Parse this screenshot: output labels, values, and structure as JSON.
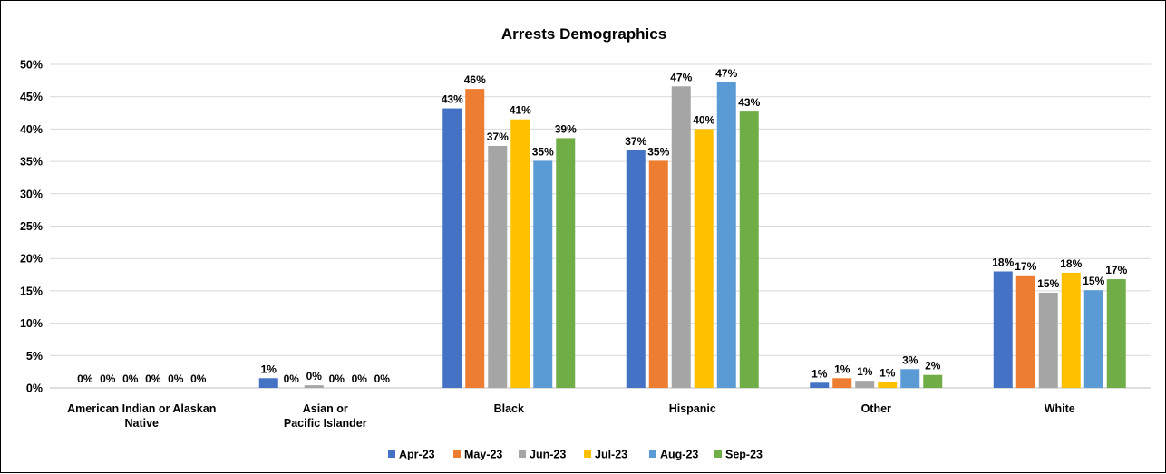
{
  "chart_data": {
    "type": "bar",
    "title": "Arrests Demographics",
    "xlabel": "",
    "ylabel": "",
    "ylim": [
      0,
      50
    ],
    "y_ticks": [
      0,
      5,
      10,
      15,
      20,
      25,
      30,
      35,
      40,
      45,
      50
    ],
    "y_tick_labels": [
      "0%",
      "5%",
      "10%",
      "15%",
      "20%",
      "25%",
      "30%",
      "35%",
      "40%",
      "45%",
      "50%"
    ],
    "grid": true,
    "legend_position": "bottom",
    "categories": [
      [
        "American Indian or Alaskan",
        "Native"
      ],
      [
        "Asian or",
        "Pacific Islander"
      ],
      [
        "Black"
      ],
      [
        "Hispanic"
      ],
      [
        "Other"
      ],
      [
        "White"
      ]
    ],
    "series": [
      {
        "name": "Apr-23",
        "color": "#4472C4",
        "values": [
          0,
          1.5,
          43.2,
          36.7,
          0.8,
          18.0
        ],
        "labels": [
          "0%",
          "1%",
          "43%",
          "37%",
          "1%",
          "18%"
        ]
      },
      {
        "name": "May-23",
        "color": "#ED7D31",
        "values": [
          0,
          0,
          46.2,
          35.1,
          1.5,
          17.4
        ],
        "labels": [
          "0%",
          "0%",
          "46%",
          "35%",
          "1%",
          "17%"
        ]
      },
      {
        "name": "Jun-23",
        "color": "#A5A5A5",
        "values": [
          0,
          0.4,
          37.4,
          46.6,
          1.1,
          14.7
        ],
        "labels": [
          "0%",
          "0%",
          "37%",
          "47%",
          "1%",
          "15%"
        ]
      },
      {
        "name": "Jul-23",
        "color": "#FFC000",
        "values": [
          0,
          0,
          41.5,
          40.0,
          0.9,
          17.8
        ],
        "labels": [
          "0%",
          "0%",
          "41%",
          "40%",
          "1%",
          "18%"
        ]
      },
      {
        "name": "Aug-23",
        "color": "#5B9BD5",
        "values": [
          0,
          0,
          35.1,
          47.2,
          2.9,
          15.1
        ],
        "labels": [
          "0%",
          "0%",
          "35%",
          "47%",
          "3%",
          "15%"
        ]
      },
      {
        "name": "Sep-23",
        "color": "#70AD47",
        "values": [
          0,
          0,
          38.6,
          42.7,
          2.0,
          16.8
        ],
        "labels": [
          "0%",
          "0%",
          "39%",
          "43%",
          "2%",
          "17%"
        ]
      }
    ]
  }
}
